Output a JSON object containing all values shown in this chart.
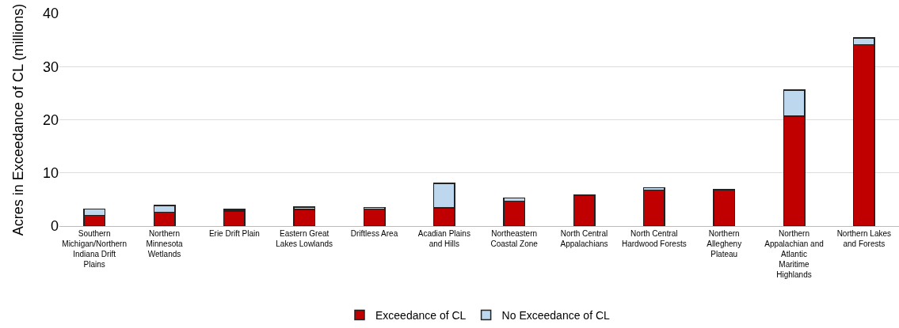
{
  "chart_data": {
    "type": "bar",
    "stacked": true,
    "ylabel": "Acres in Exceedance of CL (millions)",
    "categories": [
      "Southern Michigan/Northern Indiana Drift Plains",
      "Northern Minnesota Wetlands",
      "Erie Drift Plain",
      "Eastern Great Lakes Lowlands",
      "Driftless Area",
      "Acadian Plains and Hills",
      "Northeastern Coastal Zone",
      "North Central Appalachians",
      "North Central Hardwood Forests",
      "Northern Allegheny Plateau",
      "Northern Appalachian and Atlantic Maritime Highlands",
      "Northern Lakes and Forests"
    ],
    "series": [
      {
        "name": "Exceedance of CL",
        "color": "#c00000",
        "values": [
          2.0,
          2.6,
          2.8,
          3.1,
          3.2,
          3.4,
          4.7,
          5.7,
          6.8,
          6.8,
          20.7,
          34.1
        ]
      },
      {
        "name": "No Exceedance of CL",
        "color": "#bdd7ee",
        "values": [
          1.2,
          1.3,
          0.3,
          0.5,
          0.3,
          4.6,
          0.6,
          0.1,
          0.4,
          0.1,
          4.9,
          1.3
        ]
      }
    ],
    "ylim": [
      0,
      40
    ],
    "yticks": [
      0,
      10,
      20,
      30,
      40
    ],
    "grid": "y",
    "legend": "bottom"
  }
}
